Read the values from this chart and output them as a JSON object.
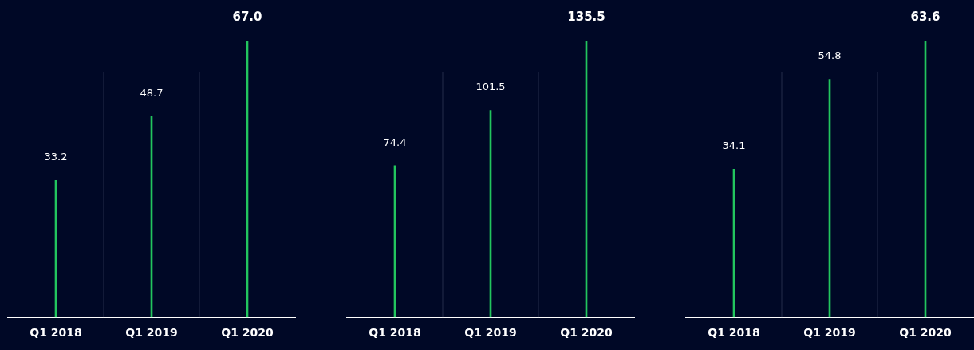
{
  "chart_data": [
    {
      "type": "bar",
      "categories": [
        "Q1 2018",
        "Q1 2019",
        "Q1 2020"
      ],
      "values": [
        33.2,
        48.7,
        67.0
      ],
      "value_labels": [
        "33.2",
        "48.7",
        "67.0"
      ],
      "color": "#22c55e",
      "tick_labels": "x"
    },
    {
      "type": "bar",
      "categories": [
        "Q1 2018",
        "Q1 2019",
        "Q1 2020"
      ],
      "values": [
        74.4,
        101.5,
        135.5
      ],
      "value_labels": [
        "74.4",
        "101.5",
        "135.5"
      ],
      "color": "#22c55e",
      "tick_labels": "x"
    },
    {
      "type": "bar",
      "categories": [
        "Q1 2018",
        "Q1 2019",
        "Q1 2020"
      ],
      "values": [
        34.1,
        54.8,
        63.6
      ],
      "value_labels": [
        "34.1",
        "54.8",
        "63.6"
      ],
      "color": "#22c55e",
      "tick_labels": "x"
    }
  ]
}
